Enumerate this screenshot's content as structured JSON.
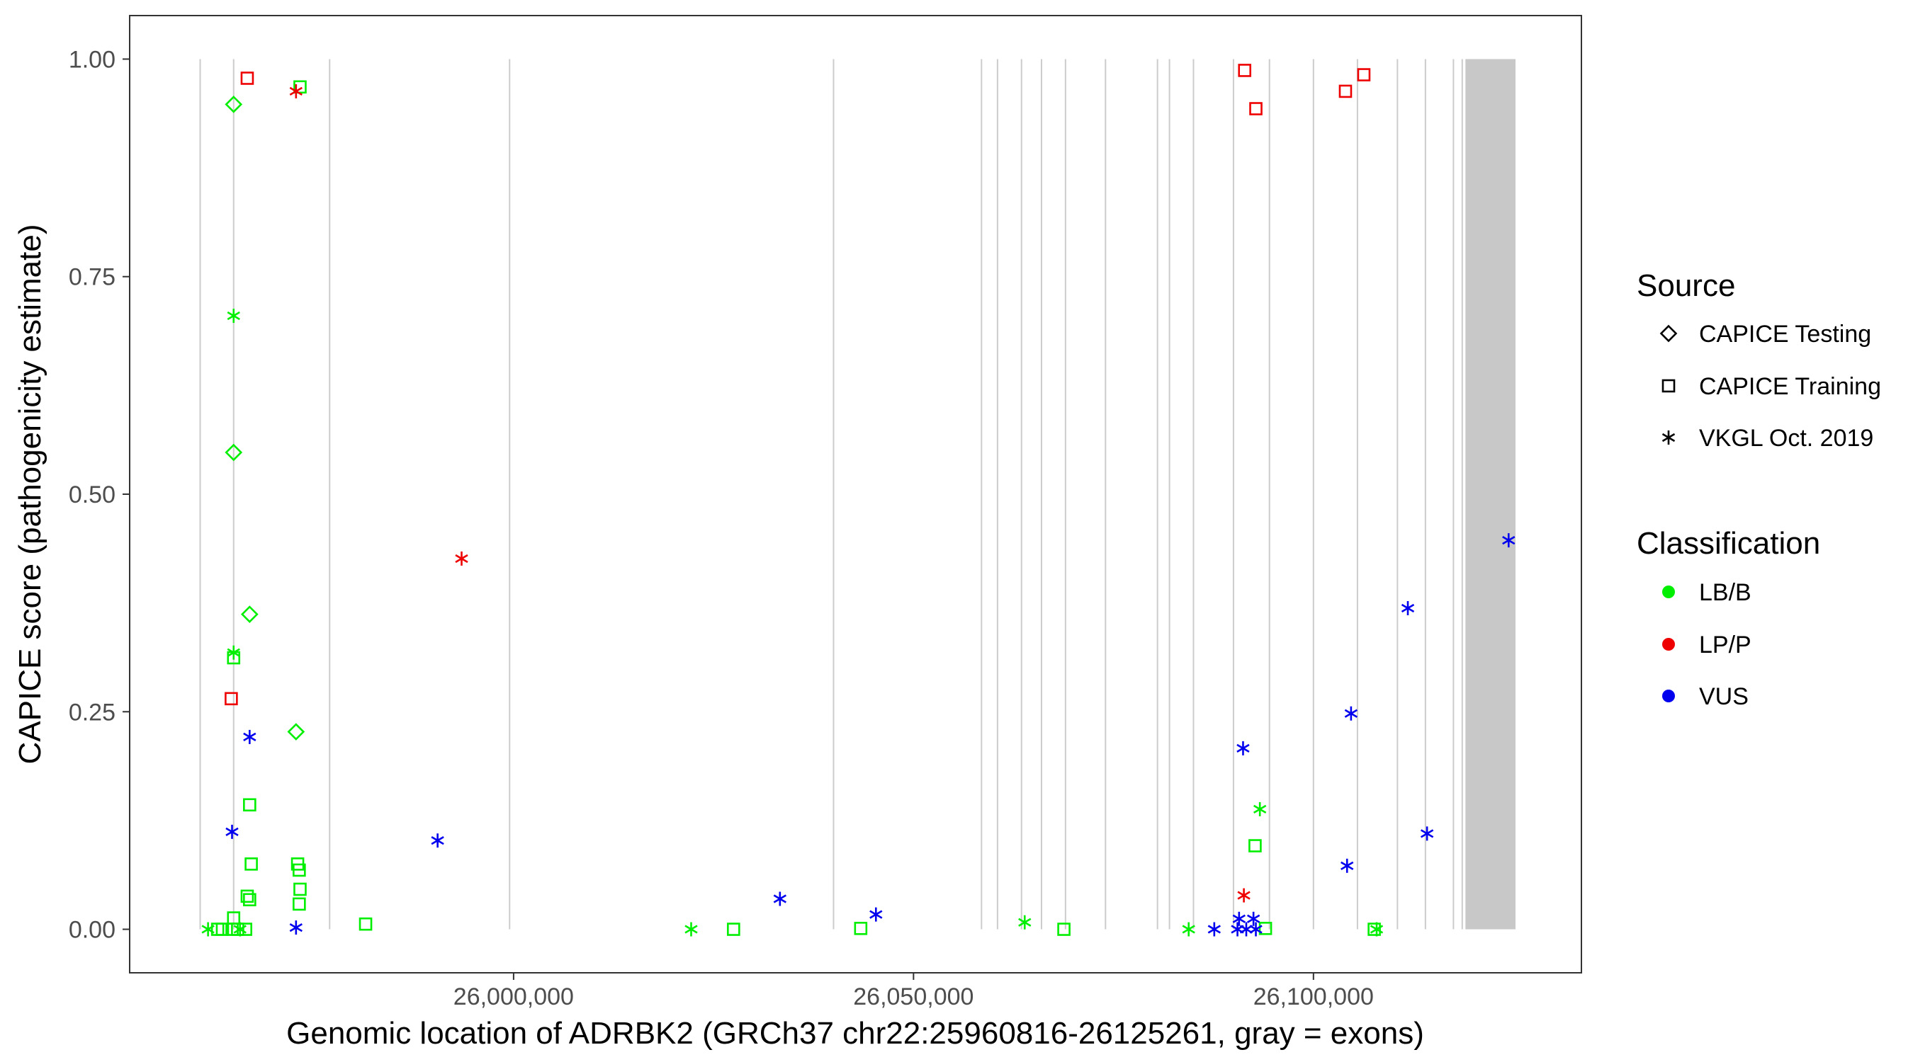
{
  "chart_data": {
    "type": "scatter",
    "xlabel": "Genomic location of ADRBK2 (GRCh37 chr22:25960816-26125261, gray = exons)",
    "ylabel": "CAPICE score (pathogenicity estimate)",
    "xlim": [
      25952000,
      26133500
    ],
    "ylim": [
      -0.05,
      1.05
    ],
    "x_ticks": [
      26000000,
      26050000,
      26100000
    ],
    "x_tick_labels": [
      "26,000,000",
      "26,050,000",
      "26,100,000"
    ],
    "y_ticks": [
      0,
      0.25,
      0.5,
      0.75,
      1.0
    ],
    "y_tick_labels": [
      "0.00",
      "0.25",
      "0.50",
      "0.75",
      "1.00"
    ],
    "grid": false,
    "exon_lines": [
      25960816,
      25965000,
      25977000,
      25999500,
      26040000,
      26058500,
      26060500,
      26063500,
      26066000,
      26069000,
      26074000,
      26080500,
      26082000,
      26085000,
      26090000,
      26094500,
      26100000,
      26105500,
      26110500,
      26114000,
      26117500,
      26118600
    ],
    "exon_block": [
      26119000,
      26125261
    ],
    "colors": {
      "LB/B": "#00ee00",
      "LP/P": "#ee0000",
      "VUS": "#0000ee"
    },
    "legend": {
      "placement": "right",
      "source_title": "Source",
      "source_items": [
        {
          "label": "CAPICE Testing",
          "shape": "diamond"
        },
        {
          "label": "CAPICE Training",
          "shape": "square"
        },
        {
          "label": "VKGL Oct. 2019",
          "shape": "star"
        }
      ],
      "class_title": "Classification",
      "class_items": [
        {
          "label": "LB/B",
          "color": "#00ee00"
        },
        {
          "label": "LP/P",
          "color": "#ee0000"
        },
        {
          "label": "VUS",
          "color": "#0000ee"
        }
      ]
    },
    "points": [
      {
        "x": 25965000,
        "y": 0.948,
        "shape": "diamond",
        "class": "LB/B"
      },
      {
        "x": 25965000,
        "y": 0.548,
        "shape": "diamond",
        "class": "LB/B"
      },
      {
        "x": 25967000,
        "y": 0.362,
        "shape": "diamond",
        "class": "LB/B"
      },
      {
        "x": 25972800,
        "y": 0.227,
        "shape": "diamond",
        "class": "LB/B"
      },
      {
        "x": 25966700,
        "y": 0.978,
        "shape": "square",
        "class": "LP/P"
      },
      {
        "x": 25973300,
        "y": 0.968,
        "shape": "square",
        "class": "LB/B"
      },
      {
        "x": 25965000,
        "y": 0.312,
        "shape": "square",
        "class": "LB/B"
      },
      {
        "x": 25964700,
        "y": 0.265,
        "shape": "square",
        "class": "LP/P"
      },
      {
        "x": 25967000,
        "y": 0.143,
        "shape": "square",
        "class": "LB/B"
      },
      {
        "x": 25967200,
        "y": 0.075,
        "shape": "square",
        "class": "LB/B"
      },
      {
        "x": 25973000,
        "y": 0.075,
        "shape": "square",
        "class": "LB/B"
      },
      {
        "x": 25973200,
        "y": 0.068,
        "shape": "square",
        "class": "LB/B"
      },
      {
        "x": 25973300,
        "y": 0.046,
        "shape": "square",
        "class": "LB/B"
      },
      {
        "x": 25966700,
        "y": 0.038,
        "shape": "square",
        "class": "LB/B"
      },
      {
        "x": 25967000,
        "y": 0.034,
        "shape": "square",
        "class": "LB/B"
      },
      {
        "x": 25973200,
        "y": 0.029,
        "shape": "square",
        "class": "LB/B"
      },
      {
        "x": 25965000,
        "y": 0.013,
        "shape": "square",
        "class": "LB/B"
      },
      {
        "x": 25963000,
        "y": 0.0,
        "shape": "square",
        "class": "LB/B"
      },
      {
        "x": 25963600,
        "y": 0.0,
        "shape": "square",
        "class": "LB/B"
      },
      {
        "x": 25964800,
        "y": 0.0,
        "shape": "square",
        "class": "LB/B"
      },
      {
        "x": 25965500,
        "y": 0.0,
        "shape": "square",
        "class": "LB/B"
      },
      {
        "x": 25966500,
        "y": 0.0,
        "shape": "square",
        "class": "LB/B"
      },
      {
        "x": 25981500,
        "y": 0.006,
        "shape": "square",
        "class": "LB/B"
      },
      {
        "x": 26027500,
        "y": 0.0,
        "shape": "square",
        "class": "LB/B"
      },
      {
        "x": 26043400,
        "y": 0.001,
        "shape": "square",
        "class": "LB/B"
      },
      {
        "x": 26068800,
        "y": 0.0,
        "shape": "square",
        "class": "LB/B"
      },
      {
        "x": 26091400,
        "y": 0.987,
        "shape": "square",
        "class": "LP/P"
      },
      {
        "x": 26092800,
        "y": 0.943,
        "shape": "square",
        "class": "LP/P"
      },
      {
        "x": 26104000,
        "y": 0.963,
        "shape": "square",
        "class": "LP/P"
      },
      {
        "x": 26106300,
        "y": 0.982,
        "shape": "square",
        "class": "LP/P"
      },
      {
        "x": 26092700,
        "y": 0.096,
        "shape": "square",
        "class": "LB/B"
      },
      {
        "x": 26094000,
        "y": 0.001,
        "shape": "square",
        "class": "LB/B"
      },
      {
        "x": 26107600,
        "y": 0.0,
        "shape": "square",
        "class": "LB/B"
      },
      {
        "x": 25972800,
        "y": 0.963,
        "shape": "star",
        "class": "LP/P"
      },
      {
        "x": 25965000,
        "y": 0.705,
        "shape": "star",
        "class": "LB/B"
      },
      {
        "x": 25965000,
        "y": 0.318,
        "shape": "star",
        "class": "LB/B"
      },
      {
        "x": 25967000,
        "y": 0.221,
        "shape": "star",
        "class": "VUS"
      },
      {
        "x": 25964800,
        "y": 0.112,
        "shape": "star",
        "class": "VUS"
      },
      {
        "x": 25993500,
        "y": 0.426,
        "shape": "star",
        "class": "LP/P"
      },
      {
        "x": 25990500,
        "y": 0.102,
        "shape": "star",
        "class": "VUS"
      },
      {
        "x": 25961800,
        "y": 0.0,
        "shape": "star",
        "class": "LB/B"
      },
      {
        "x": 25965800,
        "y": 0.0,
        "shape": "star",
        "class": "LB/B"
      },
      {
        "x": 25972800,
        "y": 0.002,
        "shape": "star",
        "class": "VUS"
      },
      {
        "x": 26022200,
        "y": 0.0,
        "shape": "star",
        "class": "LB/B"
      },
      {
        "x": 26033300,
        "y": 0.035,
        "shape": "star",
        "class": "VUS"
      },
      {
        "x": 26045300,
        "y": 0.017,
        "shape": "star",
        "class": "VUS"
      },
      {
        "x": 26063900,
        "y": 0.008,
        "shape": "star",
        "class": "LB/B"
      },
      {
        "x": 26084400,
        "y": 0.0,
        "shape": "star",
        "class": "LB/B"
      },
      {
        "x": 26087600,
        "y": 0.0,
        "shape": "star",
        "class": "VUS"
      },
      {
        "x": 26091200,
        "y": 0.208,
        "shape": "star",
        "class": "VUS"
      },
      {
        "x": 26093300,
        "y": 0.138,
        "shape": "star",
        "class": "LB/B"
      },
      {
        "x": 26091300,
        "y": 0.039,
        "shape": "star",
        "class": "LP/P"
      },
      {
        "x": 26090700,
        "y": 0.012,
        "shape": "star",
        "class": "VUS"
      },
      {
        "x": 26092500,
        "y": 0.012,
        "shape": "star",
        "class": "VUS"
      },
      {
        "x": 26090500,
        "y": 0.0,
        "shape": "star",
        "class": "VUS"
      },
      {
        "x": 26091600,
        "y": 0.0,
        "shape": "star",
        "class": "VUS"
      },
      {
        "x": 26092800,
        "y": 0.0,
        "shape": "star",
        "class": "VUS"
      },
      {
        "x": 26104200,
        "y": 0.073,
        "shape": "star",
        "class": "VUS"
      },
      {
        "x": 26104700,
        "y": 0.248,
        "shape": "star",
        "class": "VUS"
      },
      {
        "x": 26107900,
        "y": 0.0,
        "shape": "star",
        "class": "LB/B"
      },
      {
        "x": 26111800,
        "y": 0.369,
        "shape": "star",
        "class": "VUS"
      },
      {
        "x": 26114200,
        "y": 0.11,
        "shape": "star",
        "class": "VUS"
      },
      {
        "x": 26124400,
        "y": 0.447,
        "shape": "star",
        "class": "VUS"
      }
    ]
  }
}
